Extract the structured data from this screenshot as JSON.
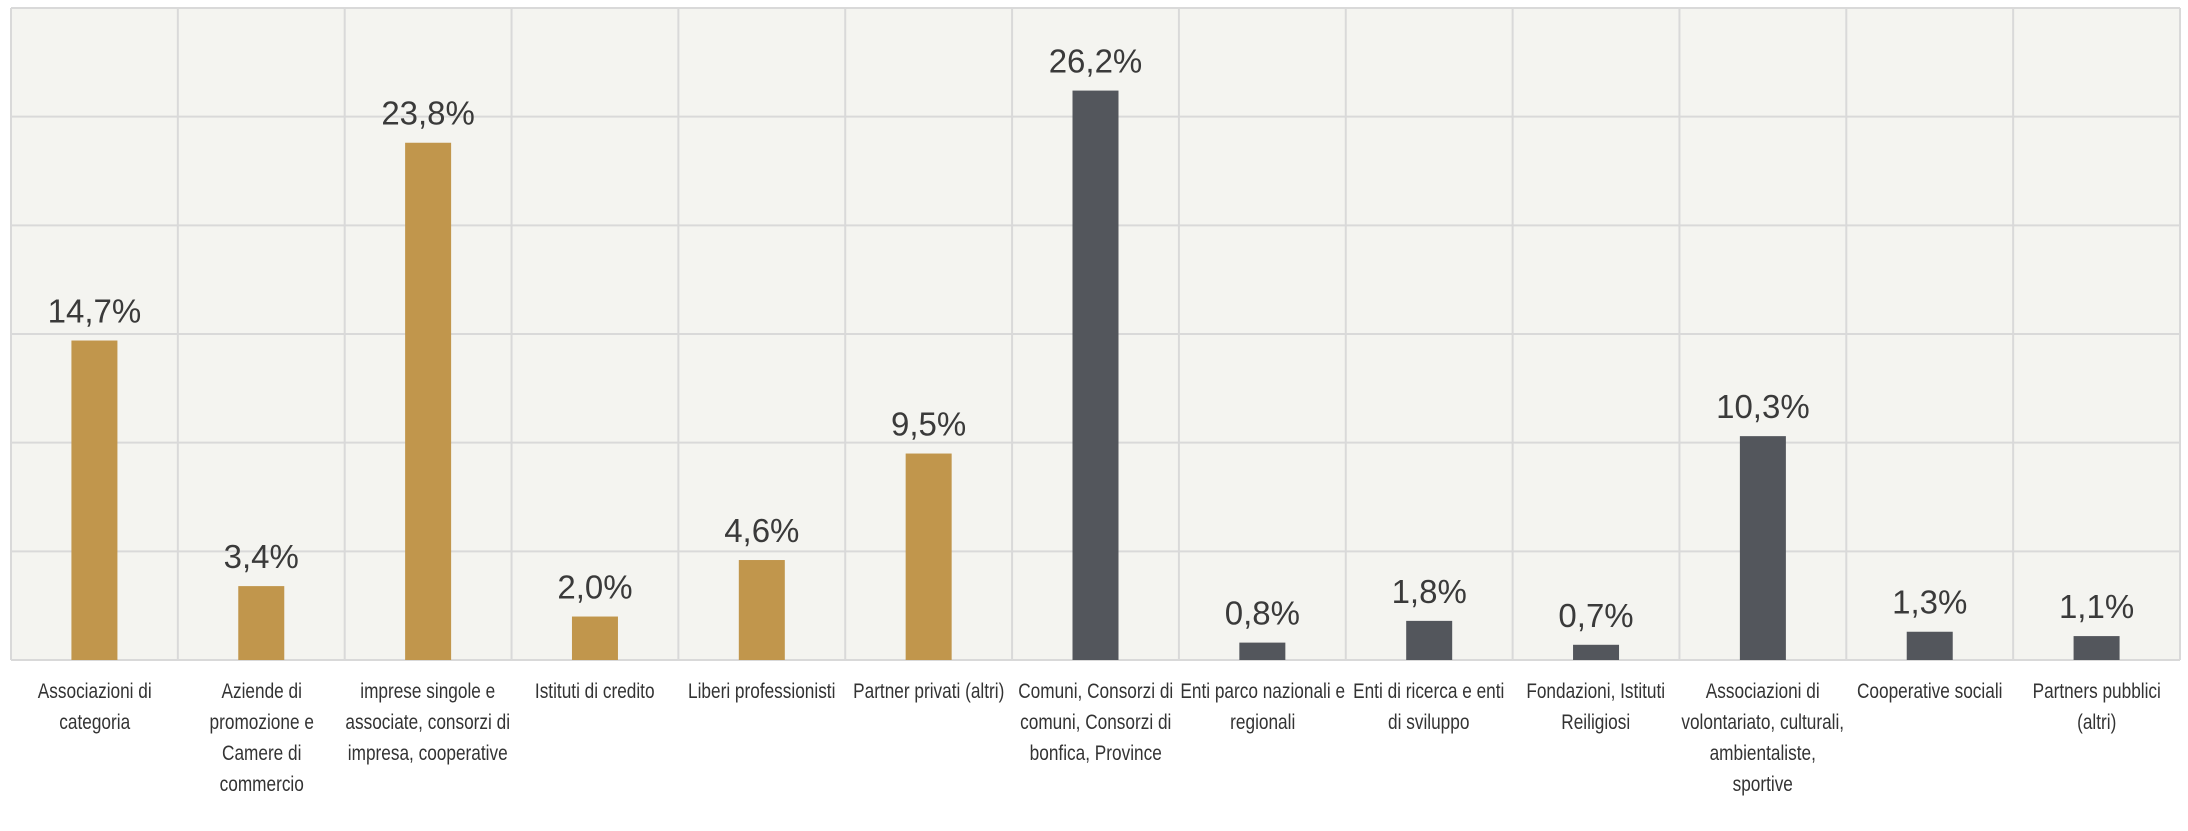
{
  "chart_data": {
    "type": "bar",
    "categories": [
      "Associazioni di categoria",
      "Aziende di promozione e Camere di commercio",
      "imprese singole e associate, consorzi di impresa, cooperative",
      "Istituti di credito",
      "Liberi professionisti",
      "Partner privati (altri)",
      "Comuni, Consorzi di comuni, Consorzi di bonfica, Province",
      "Enti parco nazionali e regionali",
      "Enti di ricerca e enti di sviluppo",
      "Fondazioni, Istituti Reiligiosi",
      "Associazioni di volontariato, culturali, ambientaliste, sportive",
      "Cooperative sociali",
      "Partners pubblici (altri)"
    ],
    "values": [
      14.7,
      3.4,
      23.8,
      2.0,
      4.6,
      9.5,
      26.2,
      0.8,
      1.8,
      0.7,
      10.3,
      1.3,
      1.1
    ],
    "value_labels": [
      "14,7%",
      "3,4%",
      "23,8%",
      "2,0%",
      "4,6%",
      "9,5%",
      "26,2%",
      "0,8%",
      "1,8%",
      "0,7%",
      "10,3%",
      "1,3%",
      "1,1%"
    ],
    "colors": [
      "#c1964c",
      "#c1964c",
      "#c1964c",
      "#c1964c",
      "#c1964c",
      "#c1964c",
      "#53565c",
      "#53565c",
      "#53565c",
      "#53565c",
      "#53565c",
      "#53565c",
      "#53565c"
    ],
    "ylim": [
      0,
      30
    ],
    "yticks": [
      0,
      5,
      10,
      15,
      20,
      25,
      30
    ],
    "grid": true
  }
}
